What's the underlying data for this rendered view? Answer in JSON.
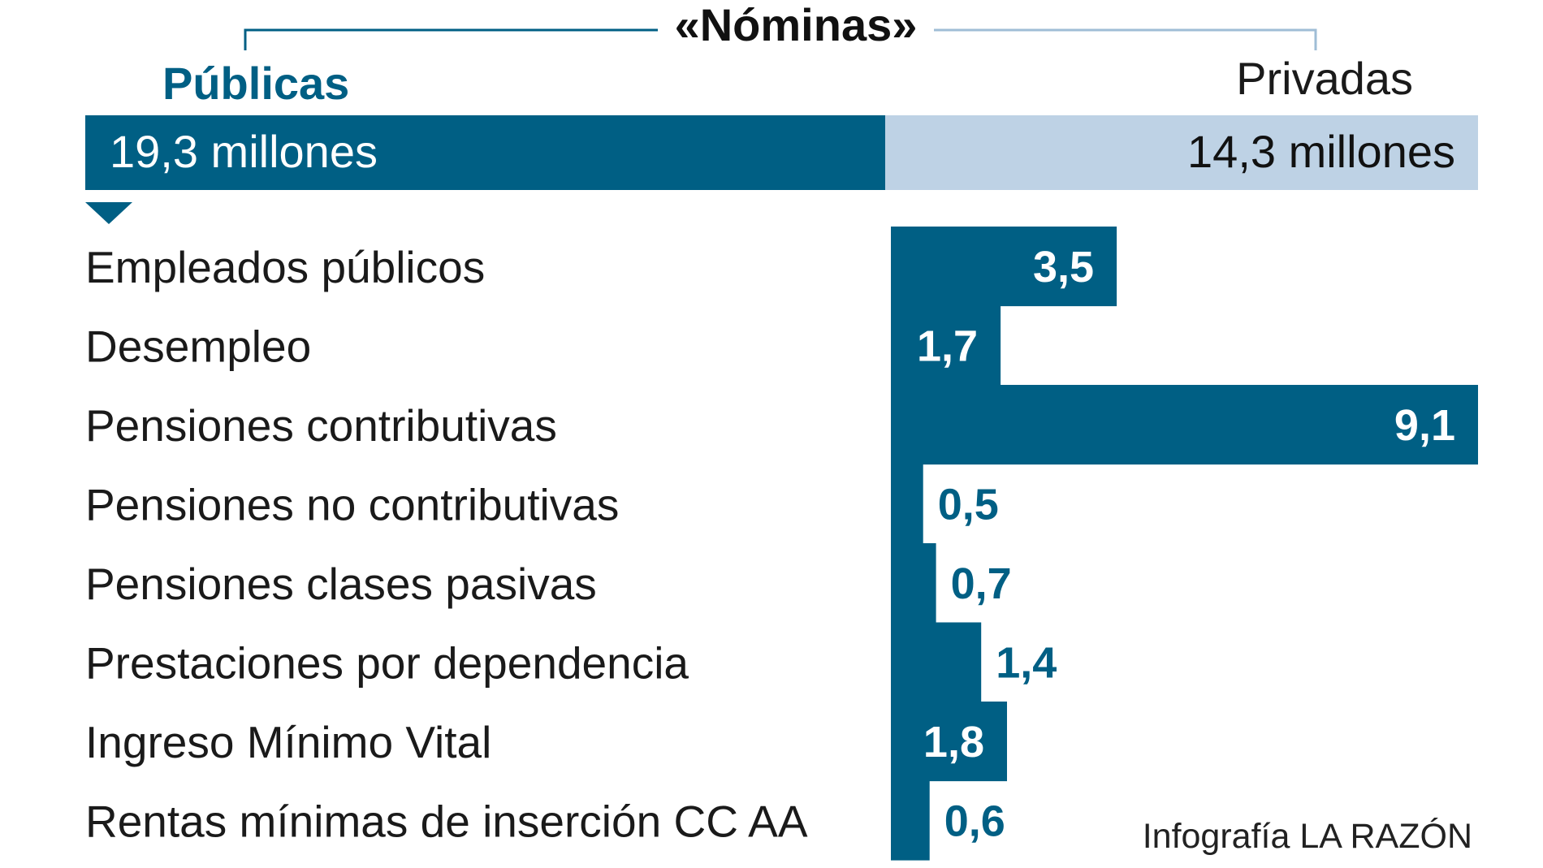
{
  "chart_data": {
    "type": "bar",
    "title": "«Nóminas»",
    "split": {
      "left_label": "Públicas",
      "right_label": "Privadas",
      "left_value": 19.3,
      "right_value": 14.3,
      "left_text": "19,3 millones",
      "right_text": "14,3 millones"
    },
    "categories": [
      "Empleados públicos",
      "Desempleo",
      "Pensiones contributivas",
      "Pensiones no contributivas",
      "Pensiones clases pasivas",
      "Prestaciones por dependencia",
      "Ingreso Mínimo Vital",
      "Rentas mínimas de inserción CC AA"
    ],
    "values": [
      3.5,
      1.7,
      9.1,
      0.5,
      0.7,
      1.4,
      1.8,
      0.6
    ],
    "value_labels": [
      "3,5",
      "1,7",
      "9,1",
      "0,5",
      "0,7",
      "1,4",
      "1,8",
      "0,6"
    ],
    "unit": "millones",
    "xlabel": "",
    "ylabel": "",
    "xlim": [
      0,
      9.1
    ]
  },
  "credit": "Infografía LA RAZÓN",
  "colors": {
    "dark": "#005f84",
    "light": "#bed2e5",
    "text": "#1a1a1a"
  }
}
